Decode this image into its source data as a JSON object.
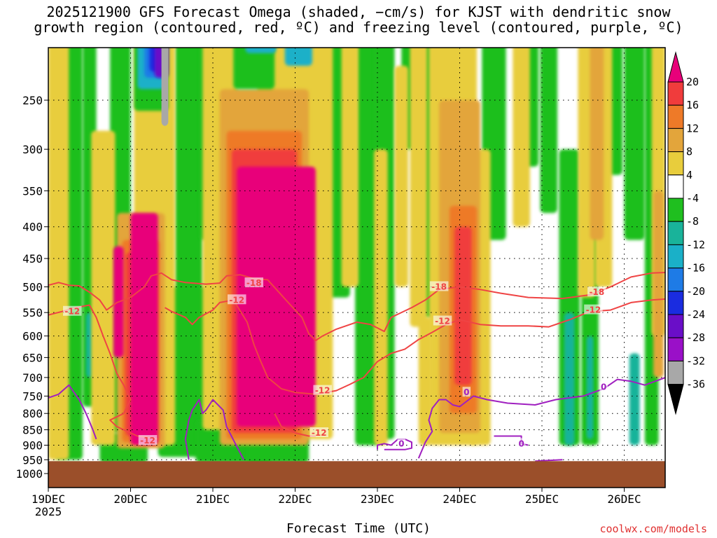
{
  "title": {
    "line1": "2025121900 GFS Forecast Omega (shaded, −cm/s) for KJST with dendritic snow",
    "line2": "growth region (contoured, red, ºC) and freezing level (contoured, purple, ºC)"
  },
  "footer": {
    "xlabel": "Forecast Time (UTC)",
    "credit": "coolwx.com/models"
  },
  "chart_data": {
    "type": "heatmap",
    "title": "2025121900 GFS Forecast Omega (shaded, −cm/s) for KJST with dendritic snow growth region (contoured, red, ºC) and freezing level (contoured, purple, ºC)",
    "xlabel": "Forecast Time (UTC)",
    "ylabel": "",
    "x_ticks": [
      "19DEC",
      "20DEC",
      "21DEC",
      "22DEC",
      "23DEC",
      "24DEC",
      "25DEC",
      "26DEC"
    ],
    "x_year_label": "2025",
    "xlim": [
      0,
      180
    ],
    "y_ticks": [
      250,
      300,
      350,
      400,
      450,
      500,
      550,
      600,
      650,
      700,
      750,
      800,
      850,
      900,
      950,
      1000
    ],
    "ylim": [
      1030,
      200
    ],
    "grid": true,
    "colorbar": {
      "ticks": [
        "20",
        "16",
        "12",
        "8",
        "4",
        "-4",
        "-8",
        "-12",
        "-16",
        "-20",
        "-24",
        "-28",
        "-32",
        "-36"
      ],
      "colors": [
        "#e8007a",
        "#f03c3c",
        "#ee7a28",
        "#e3a53b",
        "#e8cd3c",
        "#ffffff",
        "#1fbf1f",
        "#19b39a",
        "#1ab0c8",
        "#1e7be6",
        "#1a2ce0",
        "#6a0ec8",
        "#9a10c8",
        "#a8a8a8",
        "#000000"
      ]
    },
    "omega_regions": [
      {
        "t": [
          24,
          32
        ],
        "p": [
          380,
          900
        ],
        "value": 20
      },
      {
        "t": [
          55,
          78
        ],
        "p": [
          320,
          840
        ],
        "value": 20
      },
      {
        "t": [
          19,
          22
        ],
        "p": [
          430,
          650
        ],
        "value": 20
      },
      {
        "t": [
          119,
          121
        ],
        "p": [
          420,
          680
        ],
        "value": 14
      },
      {
        "t": [
          33,
          35
        ],
        "p": [
          160,
          275
        ],
        "value": -36
      }
    ],
    "contours": [
      {
        "name": "dendritic -12",
        "color": "#ef4444",
        "label": "-12"
      },
      {
        "name": "dendritic -18",
        "color": "#ef4444",
        "label": "-18"
      },
      {
        "name": "freezing level 0",
        "color": "#a020c0",
        "label": "0"
      }
    ],
    "red_contour_labels": [
      {
        "label": "-12",
        "t": 7,
        "p": 548
      },
      {
        "label": "-18",
        "t": 60,
        "p": 493
      },
      {
        "label": "-12",
        "t": 55,
        "p": 525
      },
      {
        "label": "-12",
        "t": 80,
        "p": 735
      },
      {
        "label": "-12",
        "t": 79,
        "p": 860
      },
      {
        "label": "-12",
        "t": 29,
        "p": 885
      },
      {
        "label": "-18",
        "t": 114,
        "p": 500
      },
      {
        "label": "-12",
        "t": 115,
        "p": 568
      },
      {
        "label": "-18",
        "t": 160,
        "p": 510
      },
      {
        "label": "-12",
        "t": 159,
        "p": 545
      }
    ],
    "purple_contour_labels": [
      {
        "label": "0",
        "t": 122,
        "p": 740
      },
      {
        "label": "0",
        "t": 103,
        "p": 895
      },
      {
        "label": "0",
        "t": 138,
        "p": 895
      },
      {
        "label": "0",
        "t": 162,
        "p": 725
      }
    ],
    "terrain_top_hpa": 955
  }
}
